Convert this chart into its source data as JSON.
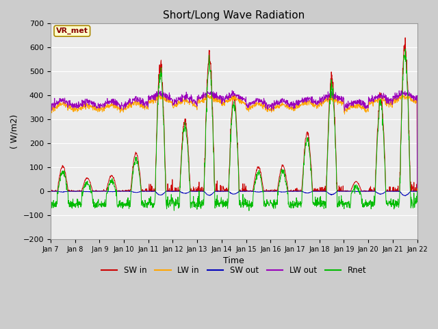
{
  "title": "Short/Long Wave Radiation",
  "xlabel": "Time",
  "ylabel": "( W/m2)",
  "ylim": [
    -200,
    700
  ],
  "yticks": [
    -200,
    -100,
    0,
    100,
    200,
    300,
    400,
    500,
    600,
    700
  ],
  "xtick_labels": [
    "Jan 7",
    "Jan 8",
    " Jan 9",
    "Jan 10",
    "Jan 11",
    "Jan 12",
    "Jan 13",
    "Jan 14",
    "Jan 15",
    "Jan 16",
    "Jan 17",
    "Jan 18",
    "Jan 19",
    "Jan 20",
    "Jan 21",
    "Jan 22"
  ],
  "colors": {
    "SW_in": "#cc0000",
    "LW_in": "#ffa500",
    "SW_out": "#0000bb",
    "LW_out": "#9900bb",
    "Rnet": "#00bb00"
  },
  "legend_labels": [
    "SW in",
    "LW in",
    "SW out",
    "LW out",
    "Rnet"
  ],
  "annotation_text": "VR_met",
  "annotation_bg": "#ffffcc",
  "annotation_border": "#aa8800",
  "fig_bg": "#cccccc",
  "plot_bg": "#ebebeb",
  "grid_color": "#ffffff",
  "n_points": 1440,
  "n_days": 15,
  "title_fontsize": 11,
  "axis_fontsize": 9,
  "tick_fontsize": 8,
  "seed": 42
}
